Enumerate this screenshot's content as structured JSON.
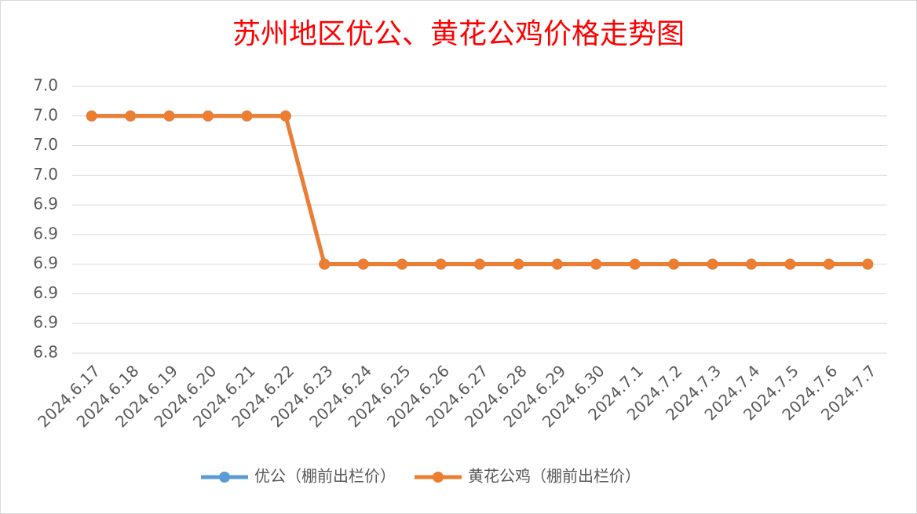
{
  "chart_data": {
    "type": "line",
    "title": "苏州地区优公、黄花公鸡价格走势图",
    "categories": [
      "2024.6.17",
      "2024.6.18",
      "2024.6.19",
      "2024.6.20",
      "2024.6.21",
      "2024.6.22",
      "2024.6.23",
      "2024.6.24",
      "2024.6.25",
      "2024.6.26",
      "2024.6.27",
      "2024.6.28",
      "2024.6.29",
      "2024.6.30",
      "2024.7.1",
      "2024.7.2",
      "2024.7.3",
      "2024.7.4",
      "2024.7.5",
      "2024.7.6",
      "2024.7.7"
    ],
    "series": [
      {
        "name": "优公（棚前出栏价）",
        "color": "#5b9bd5",
        "values": [
          7.0,
          7.0,
          7.0,
          7.0,
          7.0,
          7.0,
          6.9,
          6.9,
          6.9,
          6.9,
          6.9,
          6.9,
          6.9,
          6.9,
          6.9,
          6.9,
          6.9,
          6.9,
          6.9,
          6.9,
          6.9
        ]
      },
      {
        "name": "黄花公鸡（棚前出栏价）",
        "color": "#ed7d31",
        "values": [
          7.0,
          7.0,
          7.0,
          7.0,
          7.0,
          7.0,
          6.9,
          6.9,
          6.9,
          6.9,
          6.9,
          6.9,
          6.9,
          6.9,
          6.9,
          6.9,
          6.9,
          6.9,
          6.9,
          6.9,
          6.9
        ]
      }
    ],
    "ylim": [
      6.84,
      7.02
    ],
    "yticks": [
      {
        "value": 6.84,
        "label": "6.8"
      },
      {
        "value": 6.86,
        "label": "6.9"
      },
      {
        "value": 6.88,
        "label": "6.9"
      },
      6.9,
      {
        "value": 6.92,
        "label": "6.9"
      },
      {
        "value": 6.94,
        "label": "6.9"
      },
      {
        "value": 6.96,
        "label": "7.0"
      },
      {
        "value": 6.98,
        "label": "7.0"
      },
      {
        "value": 7.0,
        "label": "7.0"
      },
      {
        "value": 7.02,
        "label": "7.0"
      }
    ],
    "grid": true,
    "legend": "bottom"
  }
}
